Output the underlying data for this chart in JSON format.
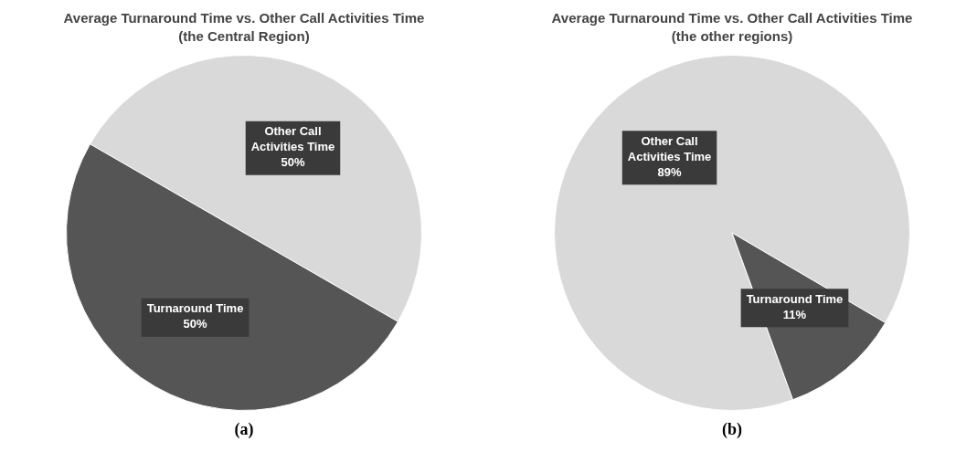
{
  "chart_data": [
    {
      "type": "pie",
      "title": "Average Turnaround Time vs. Other Call Activities Time",
      "subtitle": "(the Central Region)",
      "categories": [
        "Other Call Activities Time",
        "Turnaround Time"
      ],
      "values": [
        50,
        50
      ],
      "colors": [
        "#d9d9d9",
        "#555555"
      ],
      "value_labels": [
        "50%",
        "50%"
      ],
      "legend": false,
      "annotations": [
        "(a)"
      ]
    },
    {
      "type": "pie",
      "title": "Average Turnaround Time vs. Other Call Activities Time",
      "subtitle": "(the other regions)",
      "categories": [
        "Other Call Activities Time",
        "Turnaround Time"
      ],
      "values": [
        89,
        11
      ],
      "colors": [
        "#d9d9d9",
        "#555555"
      ],
      "value_labels": [
        "89%",
        "11%"
      ],
      "legend": false,
      "annotations": [
        "(b)"
      ]
    }
  ]
}
